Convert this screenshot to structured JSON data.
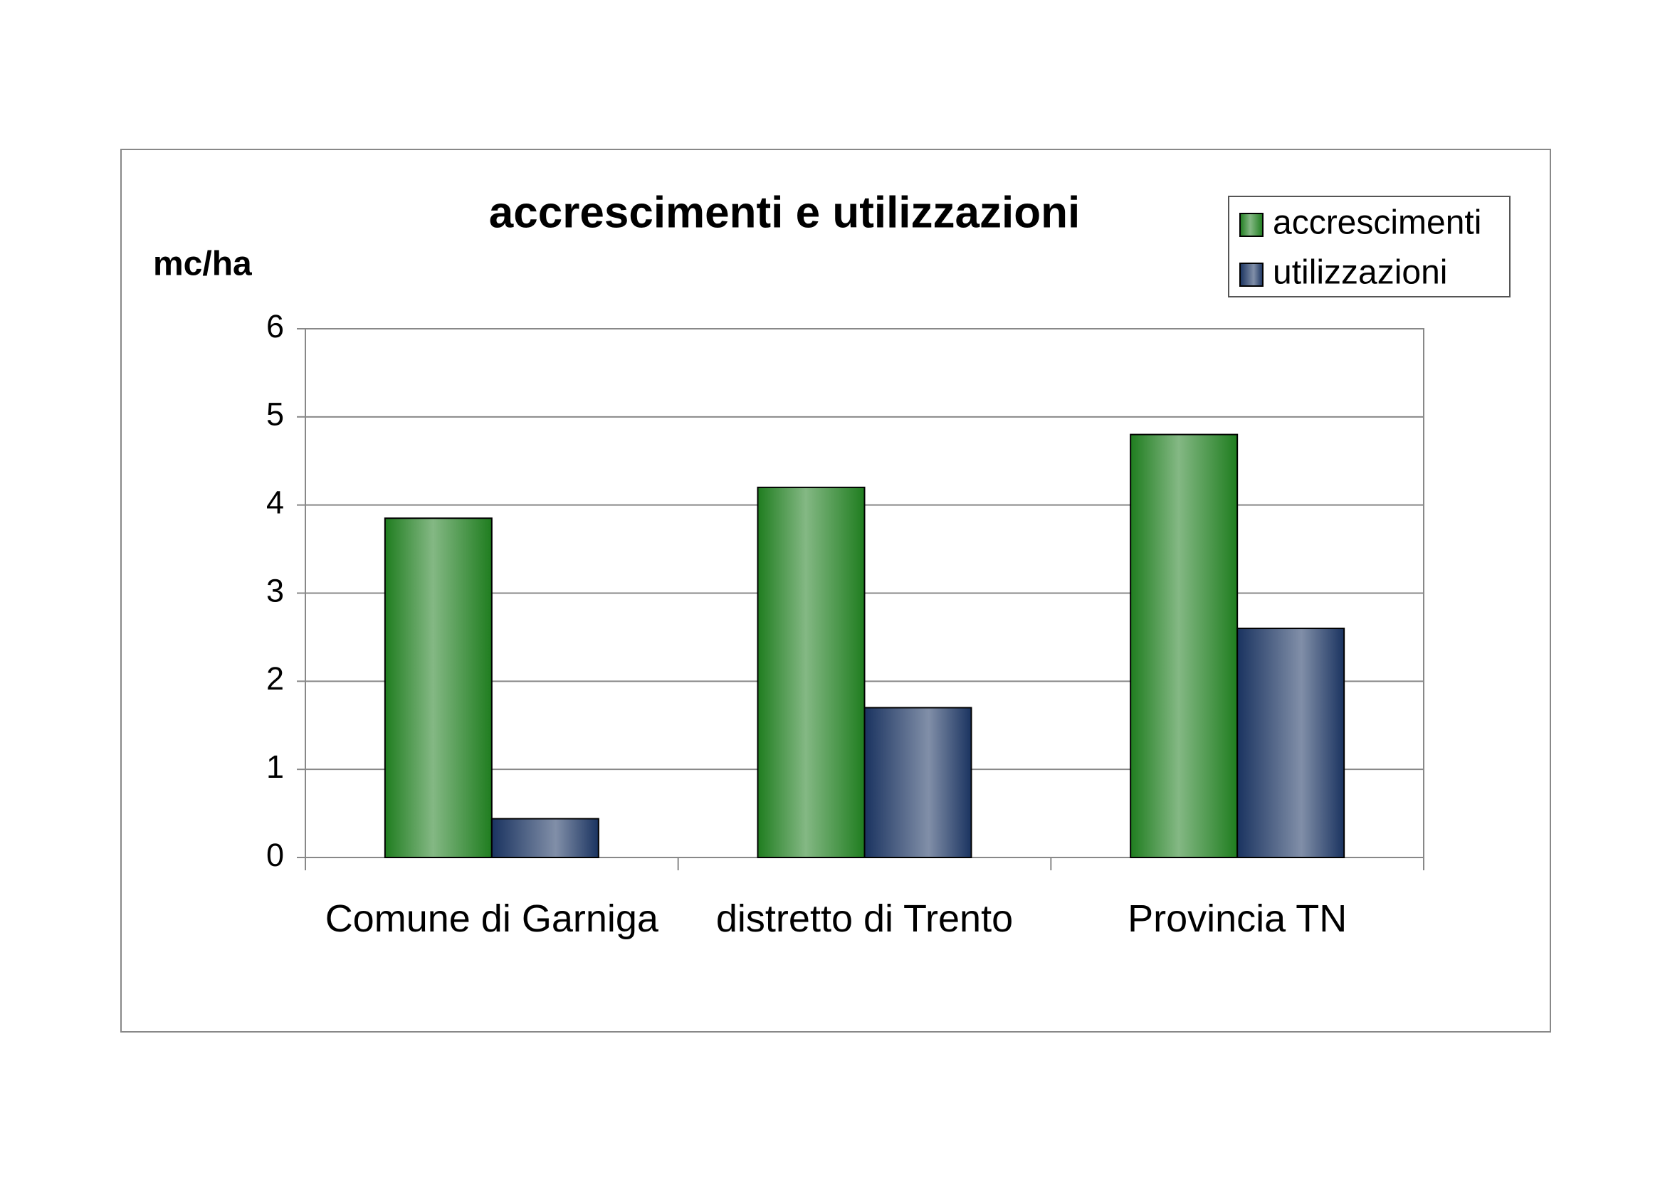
{
  "chart_data": {
    "type": "bar",
    "title": "accrescimenti e utilizzazioni",
    "y_label": "mc/ha",
    "categories": [
      "Comune di Garniga",
      "distretto di Trento",
      "Provincia TN"
    ],
    "series": [
      {
        "name": "accrescimenti",
        "color": "#1f7d1f",
        "values": [
          3.85,
          4.2,
          4.8
        ]
      },
      {
        "name": "utilizzazioni",
        "color": "#1a3360",
        "values": [
          0.44,
          1.7,
          2.6
        ]
      }
    ],
    "ylim": [
      0,
      6
    ],
    "yticks": [
      0,
      1,
      2,
      3,
      4,
      5,
      6
    ],
    "grid": true,
    "legend": "top-right"
  }
}
